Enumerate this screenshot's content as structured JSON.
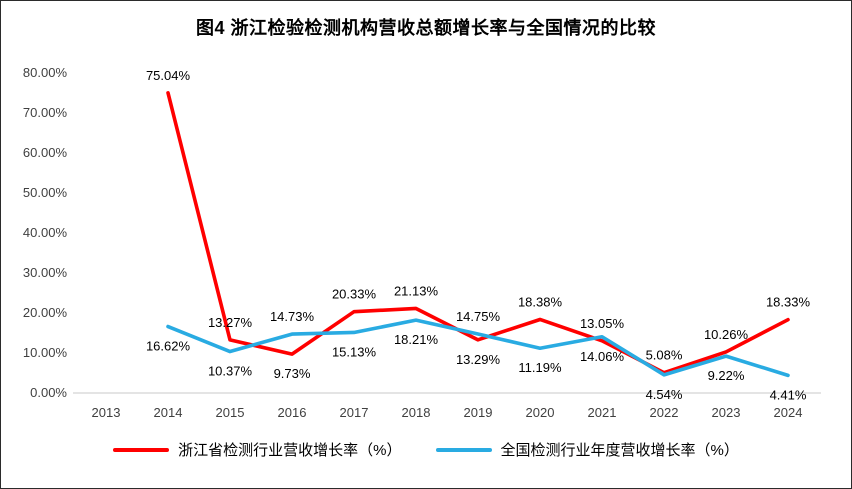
{
  "page": {
    "background": "#ffffff",
    "border_color": "#2b2b2b"
  },
  "chart_data": {
    "type": "line",
    "title": "图4  浙江检验检测机构营收总额增长率与全国情况的比较",
    "xlabel": "",
    "ylabel": "",
    "ylim": [
      0,
      80
    ],
    "grid": false,
    "legend_position": "bottom",
    "categories": [
      "2013",
      "2014",
      "2015",
      "2016",
      "2017",
      "2018",
      "2019",
      "2020",
      "2021",
      "2022",
      "2023",
      "2024"
    ],
    "y_ticks": [
      "0.00%",
      "10.00%",
      "20.00%",
      "30.00%",
      "40.00%",
      "50.00%",
      "60.00%",
      "70.00%",
      "80.00%"
    ],
    "series": [
      {
        "name": "浙江省检测行业营收增长率（%）",
        "color": "#ff0000",
        "values": [
          null,
          75.04,
          13.27,
          9.73,
          20.33,
          21.13,
          13.29,
          18.38,
          13.05,
          5.08,
          10.26,
          18.33
        ],
        "label_pos": [
          null,
          "above",
          "above",
          "below",
          "above",
          "above",
          "below",
          "above",
          "above",
          "above",
          "above",
          "above"
        ]
      },
      {
        "name": "全国检测行业年度营收增长率（%）",
        "color": "#29abe2",
        "values": [
          null,
          16.62,
          10.37,
          14.73,
          15.13,
          18.21,
          14.75,
          11.19,
          14.06,
          4.54,
          9.22,
          4.41
        ],
        "label_pos": [
          null,
          "below",
          "below",
          "above",
          "below",
          "below",
          "above",
          "below",
          "below",
          "below",
          "below",
          "below"
        ]
      }
    ]
  }
}
